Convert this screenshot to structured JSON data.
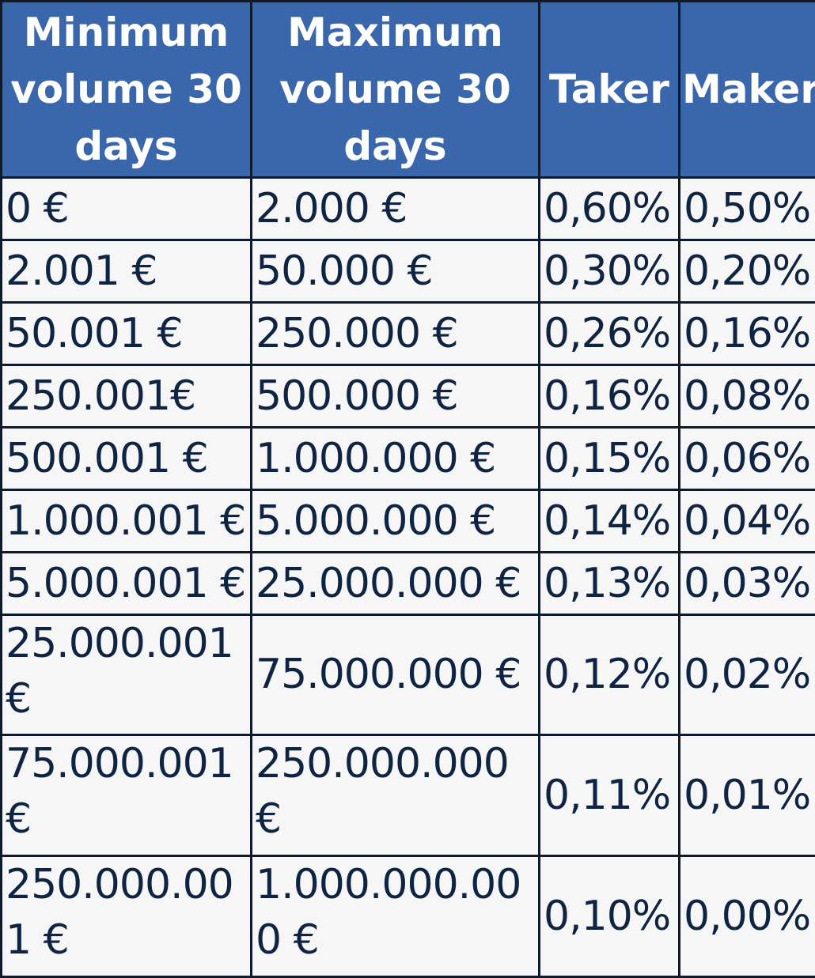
{
  "table": {
    "headers": {
      "min_volume": "Minimum volume 30 days",
      "max_volume": "Maximum volume 30 days",
      "taker": "Taker",
      "maker": "Maker"
    },
    "rows": [
      {
        "min": "0 €",
        "max": "2.000 €",
        "taker": "0,60%",
        "maker": "0,50%"
      },
      {
        "min": "2.001 €",
        "max": "50.000 €",
        "taker": "0,30%",
        "maker": "0,20%"
      },
      {
        "min": "50.001 €",
        "max": "250.000 €",
        "taker": "0,26%",
        "maker": "0,16%"
      },
      {
        "min": "250.001€",
        "max": "500.000 €",
        "taker": "0,16%",
        "maker": "0,08%"
      },
      {
        "min": "500.001 €",
        "max": "1.000.000 €",
        "taker": "0,15%",
        "maker": "0,06%"
      },
      {
        "min": "1.000.001 €",
        "max": "5.000.000 €",
        "taker": "0,14%",
        "maker": "0,04%"
      },
      {
        "min": "5.000.001 €",
        "max": "25.000.000 €",
        "taker": "0,13%",
        "maker": "0,03%"
      },
      {
        "min": "25.000.001 €",
        "max": "75.000.000 €",
        "taker": "0,12%",
        "maker": "0,02%"
      },
      {
        "min": "75.000.001 €",
        "max": "250.000.000 €",
        "taker": "0,11%",
        "maker": "0,01%"
      },
      {
        "min": "250.000.001 €",
        "max": "1.000.000.000 €",
        "taker": "0,10%",
        "maker": "0,00%"
      }
    ]
  }
}
